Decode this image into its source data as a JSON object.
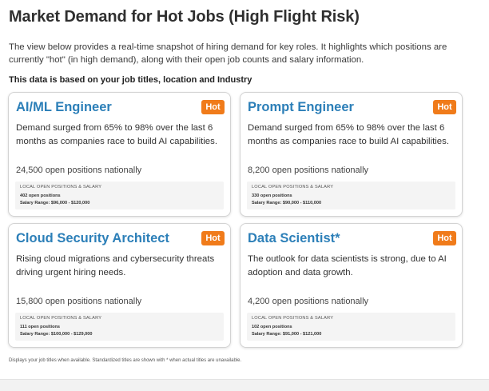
{
  "header": {
    "title": "Market Demand for Hot Jobs (High Flight Risk)",
    "intro": "The view below provides a real-time snapshot of hiring demand for key roles. It highlights which positions are currently \"hot\" (in high demand), along with their open job counts and salary information.",
    "basis": "This data is based on your job titles, location and Industry"
  },
  "cards": [
    {
      "title": "AI/ML Engineer",
      "badge": "Hot",
      "description": "Demand surged from 65% to 98% over the last 6 months as companies race to build AI capabilities.",
      "national": "24,500 open positions nationally",
      "local_label": "LOCAL OPEN POSITIONS & SALARY",
      "local_open": "402 open positions",
      "salary": "Salary Range: $96,000 - $120,000"
    },
    {
      "title": "Prompt Engineer",
      "badge": "Hot",
      "description": "Demand surged from 65% to 98% over the last 6 months as companies race to build AI capabilities.",
      "national": "8,200 open positions nationally",
      "local_label": "LOCAL OPEN POSITIONS & SALARY",
      "local_open": "330 open positions",
      "salary": "Salary Range: $90,000 - $110,000"
    },
    {
      "title": "Cloud Security Architect",
      "badge": "Hot",
      "description": "Rising cloud migrations and cybersecurity threats driving urgent hiring needs.",
      "national": "15,800 open positions nationally",
      "local_label": "LOCAL OPEN POSITIONS & SALARY",
      "local_open": "111 open positions",
      "salary": "Salary Range: $100,000 - $129,000"
    },
    {
      "title": "Data Scientist*",
      "badge": "Hot",
      "description": "The outlook for data scientists is strong, due to AI adoption and data growth.",
      "national": "4,200 open positions nationally",
      "local_label": "LOCAL OPEN POSITIONS & SALARY",
      "local_open": "102 open positions",
      "salary": "Salary Range: $91,000 - $121,000"
    }
  ],
  "footnote": "Displays your job titles when available. Standardized titles are shown with * when actual titles are unavailable.",
  "colors": {
    "title_blue": "#2c7fb8",
    "hot_orange": "#f07b1a"
  }
}
